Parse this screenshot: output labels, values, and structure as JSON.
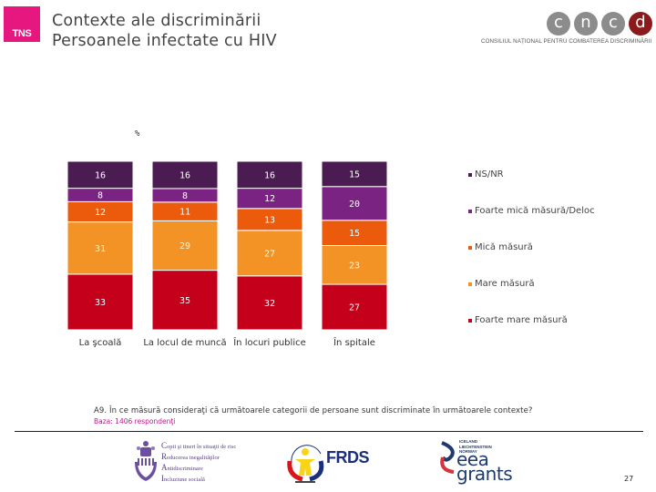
{
  "header": {
    "logo_text": "TNS",
    "title_line1": "Contexte ale discriminării",
    "title_line2": "Persoanele infectate cu HIV",
    "partner_logo": {
      "letters": [
        "c",
        "n",
        "c",
        "d"
      ],
      "caption": "CONSILIUL NAȚIONAL PENTRU COMBATEREA DISCRIMINĂRII"
    }
  },
  "chart_data": {
    "type": "bar",
    "stacked": true,
    "normalized": true,
    "unit_label": "%",
    "categories": [
      "La şcoală",
      "La locul de muncă",
      "În locuri publice",
      "În spitale"
    ],
    "series": [
      {
        "name": "Foarte mare măsură",
        "color": "#c4001a",
        "values": [
          33,
          35,
          32,
          27
        ]
      },
      {
        "name": "Mare măsură",
        "color": "#f39325",
        "values": [
          31,
          29,
          27,
          23
        ]
      },
      {
        "name": "Mică măsură",
        "color": "#ec5a0c",
        "values": [
          12,
          11,
          13,
          15
        ]
      },
      {
        "name": "Foarte mică măsură/Deloc",
        "color": "#7a2382",
        "values": [
          8,
          8,
          12,
          20
        ]
      },
      {
        "name": "NS/NR",
        "color": "#4a1c52",
        "values": [
          16,
          16,
          16,
          15
        ]
      }
    ],
    "legend_order": [
      "NS/NR",
      "Foarte mică măsură/Deloc",
      "Mică măsură",
      "Mare măsură",
      "Foarte mare măsură"
    ],
    "legend_placement": "right",
    "ylim": [
      0,
      100
    ],
    "grid": false
  },
  "footer": {
    "question": "A9. În ce măsură consideraţi că următoarele categorii de persoane sunt discriminate în următoarele contexte?",
    "base": "Baza: 1406 respondenţi",
    "copii_lines": [
      "Copii şi tineri în situaţii de risc",
      "Reducerea inegalităţilor",
      "Antidiscriminare",
      "Incluziune socială"
    ],
    "frds_text": "FRDS",
    "eea_small": [
      "ICELAND",
      "LIECHTENSTEIN",
      "NORWAY"
    ],
    "eea_big": [
      "eea",
      "grants"
    ],
    "page_number": "27"
  }
}
